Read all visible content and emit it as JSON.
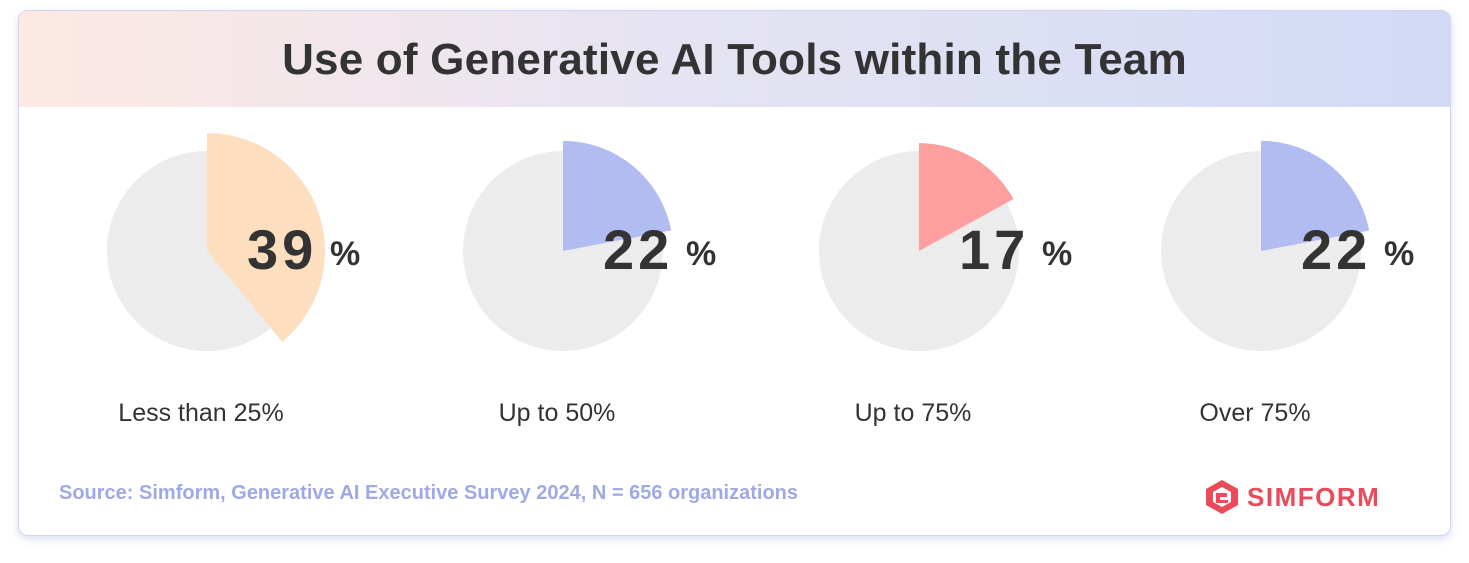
{
  "chart_data": {
    "type": "pie",
    "title": "Use of Generative AI Tools within the Team",
    "categories": [
      "Less than 25%",
      "Up to 50%",
      "Up to 75%",
      "Over 75%"
    ],
    "values": [
      39,
      22,
      17,
      22
    ],
    "value_labels": [
      "39",
      "22",
      "17",
      "22"
    ],
    "unit": "%",
    "colors": [
      "#fddfc0",
      "#b1bcf0",
      "#fd9f9f",
      "#b1bcf0"
    ],
    "background_color": "#ececec"
  },
  "source": "Source: Simform, Generative AI Executive Survey 2024, N = 656 organizations",
  "logo": {
    "text": "SIMFORM",
    "icon": "simform-logo-icon",
    "color": "#ea4a5a"
  }
}
